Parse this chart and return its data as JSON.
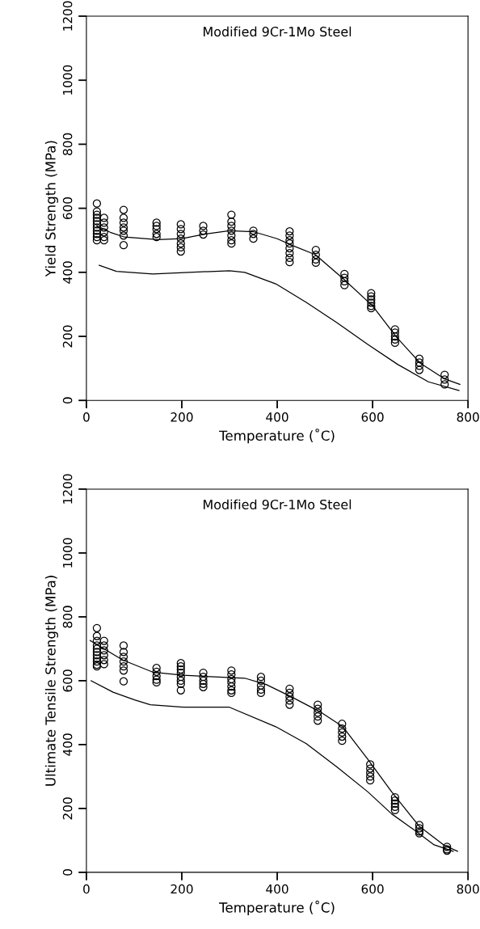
{
  "chart_data": [
    {
      "type": "scatter",
      "title": "Modified 9Cr-1Mo Steel",
      "xlabel": "Temperature (˚C)",
      "ylabel": "Yield Strength (MPa)",
      "xlim": [
        0,
        800
      ],
      "ylim": [
        0,
        1200
      ],
      "xticks": [
        0,
        200,
        400,
        600,
        800
      ],
      "yticks": [
        0,
        200,
        400,
        600,
        800,
        1000,
        1200
      ],
      "grid": false,
      "legend": false,
      "series": [
        {
          "color": "#000000",
          "marker": "circle",
          "x": [
            22,
            22,
            22,
            22,
            22,
            22,
            22,
            22,
            22,
            22,
            22,
            37,
            37,
            37,
            37,
            37,
            37,
            78,
            78,
            78,
            78,
            78,
            78,
            78,
            147,
            147,
            147,
            147,
            147,
            198,
            198,
            198,
            198,
            198,
            198,
            198,
            245,
            245,
            245,
            304,
            304,
            304,
            304,
            304,
            304,
            304,
            350,
            350,
            350,
            426,
            426,
            426,
            426,
            426,
            426,
            426,
            426,
            481,
            481,
            481,
            481,
            541,
            541,
            541,
            541,
            597,
            597,
            597,
            597,
            597,
            597,
            647,
            647,
            647,
            647,
            647,
            698,
            698,
            698,
            698,
            751,
            751,
            751
          ],
          "values": [
            615,
            590,
            580,
            570,
            560,
            550,
            540,
            530,
            520,
            510,
            500,
            570,
            555,
            540,
            525,
            510,
            500,
            595,
            570,
            555,
            540,
            530,
            515,
            485,
            555,
            545,
            535,
            520,
            510,
            550,
            535,
            520,
            505,
            490,
            478,
            465,
            545,
            530,
            518,
            580,
            558,
            545,
            530,
            515,
            500,
            490,
            530,
            520,
            505,
            528,
            515,
            500,
            490,
            475,
            460,
            445,
            432,
            470,
            455,
            440,
            430,
            395,
            383,
            372,
            360,
            335,
            325,
            315,
            305,
            295,
            288,
            222,
            212,
            200,
            190,
            180,
            130,
            118,
            108,
            95,
            80,
            65,
            50
          ]
        },
        {
          "type": "line",
          "color": "#000000",
          "marker": "none",
          "line_style": "solid",
          "x": [
            22,
            50,
            80,
            150,
            200,
            250,
            300,
            350,
            400,
            430,
            480,
            540,
            600,
            650,
            700,
            750,
            783
          ],
          "values": [
            545,
            525,
            510,
            502,
            505,
            520,
            530,
            527,
            505,
            485,
            455,
            378,
            295,
            198,
            116,
            68,
            50
          ]
        },
        {
          "type": "line",
          "color": "#000000",
          "marker": "none",
          "line_style": "solid",
          "x": [
            27,
            63,
            139,
            300,
            332,
            397,
            461,
            525,
            590,
            653,
            717,
            781
          ],
          "values": [
            422,
            403,
            395,
            405,
            400,
            364,
            306,
            243,
            175,
            112,
            58,
            31
          ]
        }
      ]
    },
    {
      "type": "scatter",
      "title": "Modified 9Cr-1Mo Steel",
      "xlabel": "Temperature (˚C)",
      "ylabel": "Ultimate Tensile Strength (MPa)",
      "xlim": [
        0,
        800
      ],
      "ylim": [
        0,
        1200
      ],
      "xticks": [
        0,
        200,
        400,
        600,
        800
      ],
      "yticks": [
        0,
        200,
        400,
        600,
        800,
        1000,
        1200
      ],
      "grid": false,
      "legend": false,
      "series": [
        {
          "color": "#000000",
          "marker": "circle",
          "x": [
            22,
            22,
            22,
            22,
            22,
            22,
            22,
            22,
            22,
            22,
            22,
            37,
            37,
            37,
            37,
            37,
            37,
            78,
            78,
            78,
            78,
            78,
            78,
            78,
            147,
            147,
            147,
            147,
            147,
            198,
            198,
            198,
            198,
            198,
            198,
            198,
            198,
            245,
            245,
            245,
            245,
            245,
            304,
            304,
            304,
            304,
            304,
            304,
            304,
            366,
            366,
            366,
            366,
            366,
            426,
            426,
            426,
            426,
            426,
            485,
            485,
            485,
            485,
            485,
            536,
            536,
            536,
            536,
            536,
            595,
            595,
            595,
            595,
            595,
            647,
            647,
            647,
            647,
            647,
            698,
            698,
            698,
            698,
            756,
            756,
            756
          ],
          "values": [
            765,
            740,
            725,
            710,
            700,
            690,
            680,
            670,
            660,
            650,
            645,
            725,
            710,
            695,
            680,
            665,
            652,
            710,
            690,
            675,
            660,
            645,
            632,
            598,
            640,
            628,
            615,
            603,
            595,
            655,
            645,
            635,
            625,
            612,
            600,
            590,
            570,
            625,
            612,
            600,
            590,
            580,
            632,
            620,
            605,
            595,
            582,
            570,
            562,
            612,
            600,
            585,
            572,
            562,
            575,
            562,
            550,
            538,
            525,
            525,
            512,
            500,
            488,
            475,
            465,
            450,
            438,
            425,
            412,
            338,
            325,
            312,
            300,
            288,
            235,
            225,
            215,
            205,
            195,
            148,
            138,
            128,
            122,
            80,
            72,
            68
          ]
        },
        {
          "type": "line",
          "color": "#000000",
          "marker": "none",
          "line_style": "solid",
          "x": [
            8,
            76,
            139,
            203,
            268,
            332,
            377,
            429,
            493,
            537,
            590,
            640,
            698,
            749,
            778
          ],
          "values": [
            726,
            665,
            627,
            617,
            612,
            608,
            588,
            550,
            500,
            457,
            354,
            252,
            144,
            86,
            66
          ]
        },
        {
          "type": "line",
          "color": "#000000",
          "marker": "none",
          "line_style": "solid",
          "x": [
            10,
            56,
            101,
            134,
            203,
            300,
            397,
            461,
            525,
            590,
            640,
            685,
            729,
            769
          ],
          "values": [
            600,
            564,
            540,
            525,
            517,
            517,
            456,
            403,
            330,
            252,
            183,
            135,
            86,
            66
          ]
        }
      ]
    }
  ]
}
